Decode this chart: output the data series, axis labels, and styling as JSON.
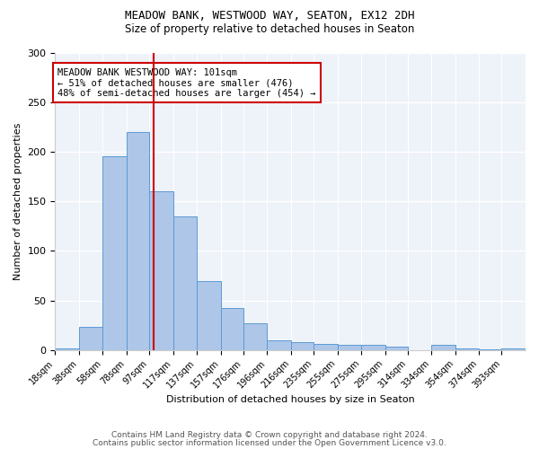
{
  "title1": "MEADOW BANK, WESTWOOD WAY, SEATON, EX12 2DH",
  "title2": "Size of property relative to detached houses in Seaton",
  "xlabel": "Distribution of detached houses by size in Seaton",
  "ylabel": "Number of detached properties",
  "annotation_title": "MEADOW BANK WESTWOOD WAY: 101sqm",
  "annotation_line1": "← 51% of detached houses are smaller (476)",
  "annotation_line2": "48% of semi-detached houses are larger (454) →",
  "property_size": 101,
  "bar_edges": [
    18,
    38,
    58,
    78,
    97,
    117,
    137,
    157,
    176,
    196,
    216,
    235,
    255,
    275,
    295,
    314,
    334,
    354,
    374,
    393,
    413
  ],
  "bar_heights": [
    2,
    23,
    196,
    220,
    160,
    135,
    70,
    42,
    27,
    10,
    8,
    6,
    5,
    5,
    3,
    0,
    5,
    2,
    1,
    2
  ],
  "bar_color": "#aec6e8",
  "bar_edge_color": "#5b9bd5",
  "line_color": "#cc0000",
  "annotation_box_edge": "#cc0000",
  "footer1": "Contains HM Land Registry data © Crown copyright and database right 2024.",
  "footer2": "Contains public sector information licensed under the Open Government Licence v3.0.",
  "bg_color": "#eef2f9",
  "ylim": [
    0,
    300
  ],
  "yticks": [
    0,
    50,
    100,
    150,
    200,
    250,
    300
  ]
}
